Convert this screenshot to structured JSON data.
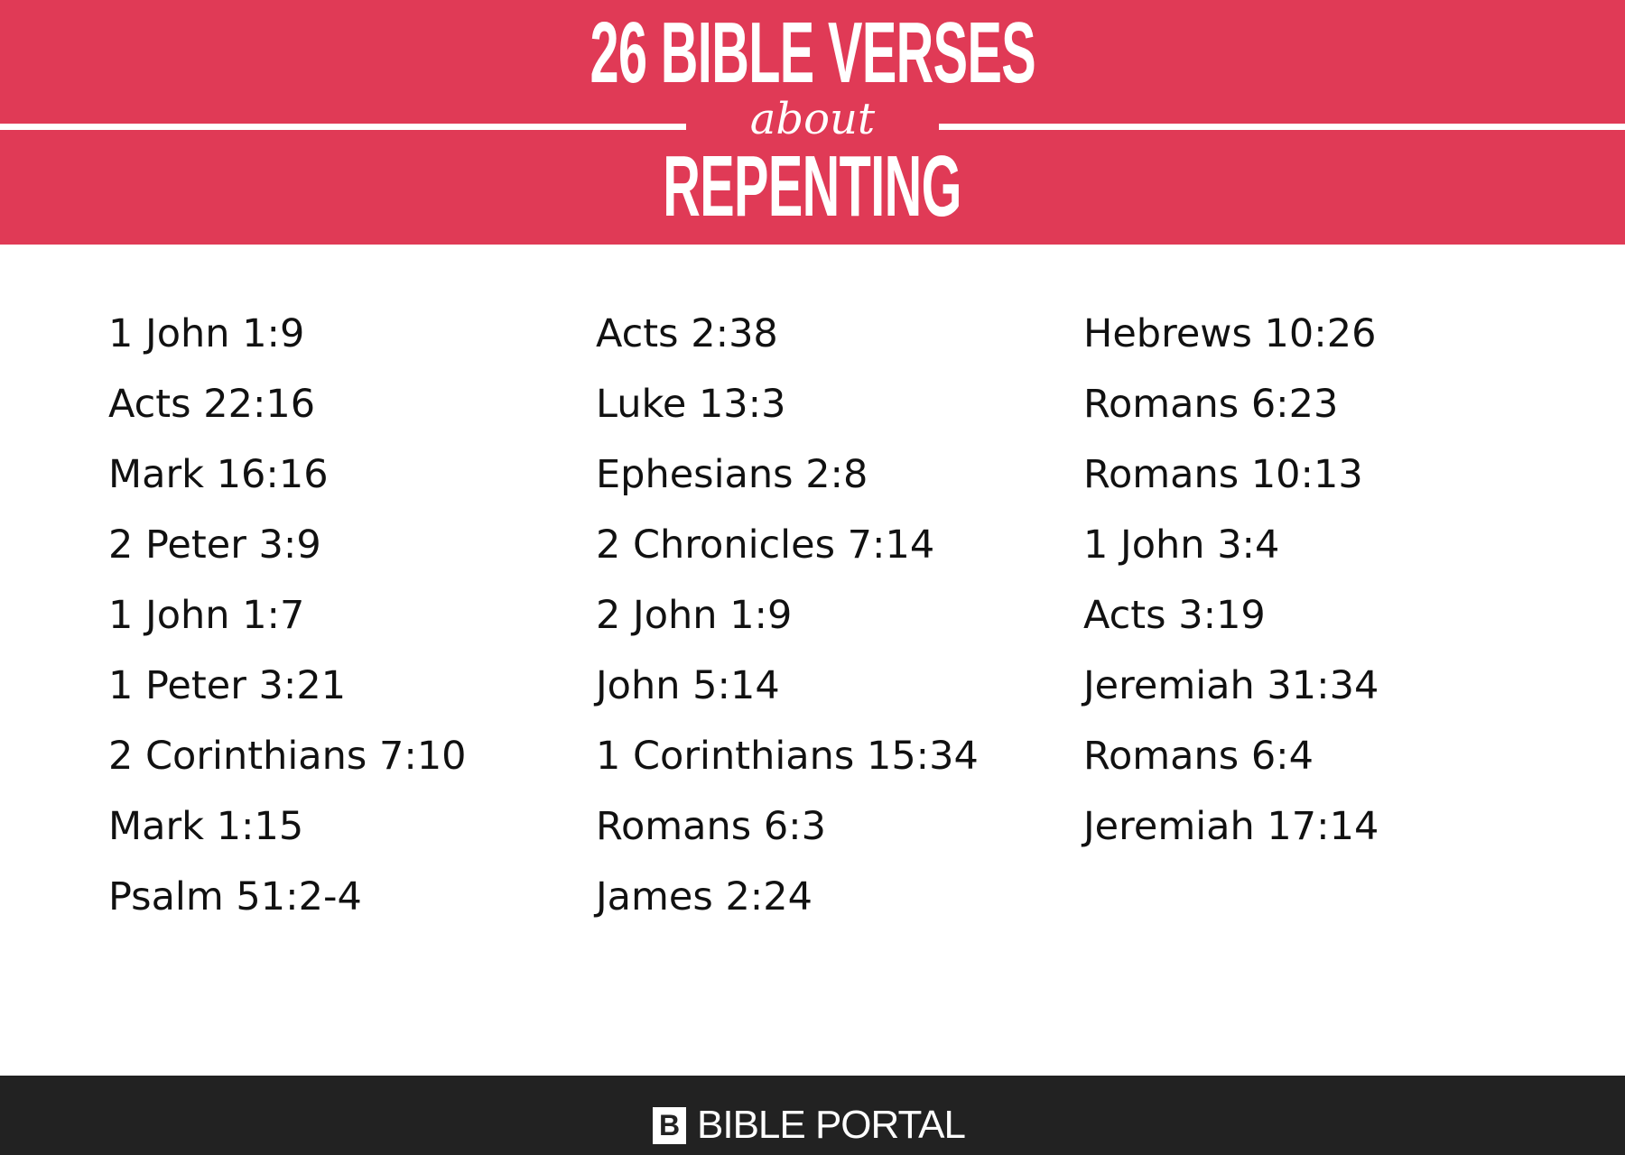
{
  "header": {
    "title_line1": "26 BIBLE VERSES",
    "title_line2": "about",
    "title_line3": "REPENTING",
    "background_color": "#e03a56"
  },
  "columns": [
    [
      "1 John 1:9",
      "Acts 22:16",
      "Mark 16:16",
      "2 Peter 3:9",
      "1 John 1:7",
      "1 Peter 3:21",
      "2 Corinthians 7:10",
      "Mark 1:15",
      "Psalm 51:2-4"
    ],
    [
      "Acts 2:38",
      "Luke 13:3",
      "Ephesians 2:8",
      "2 Chronicles 7:14",
      "2 John 1:9",
      "John 5:14",
      "1 Corinthians 15:34",
      "Romans 6:3",
      "James 2:24"
    ],
    [
      "Hebrews 10:26",
      "Romans 6:23",
      "Romans 10:13",
      "1 John 3:4",
      "Acts 3:19",
      "Jeremiah 31:34",
      "Romans 6:4",
      "Jeremiah 17:14"
    ]
  ],
  "footer": {
    "logo_letter": "B",
    "brand": "BIBLE PORTAL",
    "background_color": "#222222"
  }
}
